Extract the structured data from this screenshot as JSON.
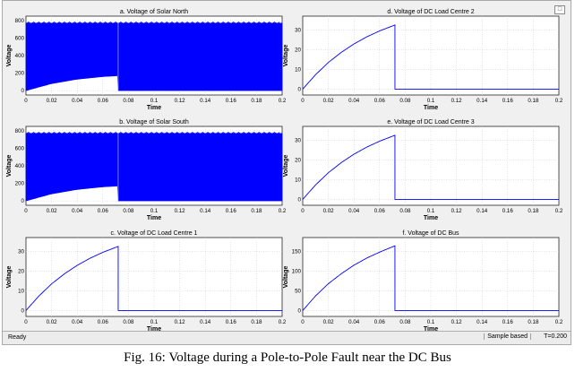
{
  "status": {
    "left": "Ready",
    "mode": "Sample based",
    "time": "T=0.200"
  },
  "caption": "Fig. 16: Voltage during a Pole-to-Pole Fault near the DC Bus",
  "colors": {
    "trace": "#0000ff",
    "background": "#f0f0f0",
    "axes": "#ffffff"
  },
  "chart_data": [
    {
      "type": "line",
      "title": "a. Voltage of Solar North",
      "xlabel": "Time",
      "ylabel": "Voltage",
      "xlim": [
        0,
        0.2
      ],
      "ylim": [
        -50,
        850
      ],
      "xticks": [
        "0",
        "0.02",
        "0.04",
        "0.06",
        "0.08",
        "0.1",
        "0.12",
        "0.14",
        "0.16",
        "0.18",
        "0.2"
      ],
      "yticks": [
        "0",
        "200",
        "400",
        "600",
        "800"
      ],
      "series": [
        {
          "kind": "switching",
          "upper": 770,
          "lower_env": [
            [
              0,
              0
            ],
            [
              0.02,
              80
            ],
            [
              0.04,
              130
            ],
            [
              0.06,
              160
            ],
            [
              0.072,
              170
            ],
            [
              0.073,
              0
            ],
            [
              0.2,
              0
            ]
          ]
        }
      ]
    },
    {
      "type": "line",
      "title": "d. Voltage of DC Load Centre 2",
      "xlabel": "Time",
      "ylabel": "Voltage",
      "xlim": [
        0,
        0.2
      ],
      "ylim": [
        -3,
        37
      ],
      "xticks": [
        "0",
        "0.02",
        "0.04",
        "0.06",
        "0.08",
        "0.1",
        "0.12",
        "0.14",
        "0.16",
        "0.18",
        "0.2"
      ],
      "yticks": [
        "0",
        "10",
        "20",
        "30"
      ],
      "series": [
        {
          "points": [
            [
              0,
              0
            ],
            [
              0.01,
              7.3
            ],
            [
              0.02,
              13.5
            ],
            [
              0.03,
              18.6
            ],
            [
              0.04,
              22.9
            ],
            [
              0.05,
              26.5
            ],
            [
              0.06,
              29.5
            ],
            [
              0.072,
              32.5
            ],
            [
              0.073,
              0
            ],
            [
              0.2,
              0
            ]
          ]
        }
      ]
    },
    {
      "type": "line",
      "title": "b. Voltage of Solar South",
      "xlabel": "Time",
      "ylabel": "Voltage",
      "xlim": [
        0,
        0.2
      ],
      "ylim": [
        -50,
        850
      ],
      "xticks": [
        "0",
        "0.02",
        "0.04",
        "0.06",
        "0.08",
        "0.1",
        "0.12",
        "0.14",
        "0.16",
        "0.18",
        "0.2"
      ],
      "yticks": [
        "0",
        "200",
        "400",
        "600",
        "800"
      ],
      "series": [
        {
          "kind": "switching",
          "upper": 770,
          "lower_env": [
            [
              0,
              0
            ],
            [
              0.02,
              80
            ],
            [
              0.04,
              130
            ],
            [
              0.06,
              160
            ],
            [
              0.072,
              170
            ],
            [
              0.073,
              0
            ],
            [
              0.2,
              0
            ]
          ]
        }
      ]
    },
    {
      "type": "line",
      "title": "e. Voltage of DC Load Centre 3",
      "xlabel": "Time",
      "ylabel": "Voltage",
      "xlim": [
        0,
        0.2
      ],
      "ylim": [
        -3,
        37
      ],
      "xticks": [
        "0",
        "0.02",
        "0.04",
        "0.06",
        "0.08",
        "0.1",
        "0.12",
        "0.14",
        "0.16",
        "0.18",
        "0.2"
      ],
      "yticks": [
        "0",
        "10",
        "20",
        "30"
      ],
      "series": [
        {
          "points": [
            [
              0,
              0
            ],
            [
              0.01,
              7.3
            ],
            [
              0.02,
              13.5
            ],
            [
              0.03,
              18.6
            ],
            [
              0.04,
              22.9
            ],
            [
              0.05,
              26.5
            ],
            [
              0.06,
              29.5
            ],
            [
              0.072,
              32.5
            ],
            [
              0.073,
              0
            ],
            [
              0.2,
              0
            ]
          ]
        }
      ]
    },
    {
      "type": "line",
      "title": "c. Voltage of DC Load Centre 1",
      "xlabel": "Time",
      "ylabel": "Voltage",
      "xlim": [
        0,
        0.2
      ],
      "ylim": [
        -3,
        37
      ],
      "xticks": [
        "0",
        "0.02",
        "0.04",
        "0.06",
        "0.08",
        "0.1",
        "0.12",
        "0.14",
        "0.16",
        "0.18",
        "0.2"
      ],
      "yticks": [
        "0",
        "10",
        "20",
        "30"
      ],
      "series": [
        {
          "points": [
            [
              0,
              0
            ],
            [
              0.01,
              7.3
            ],
            [
              0.02,
              13.5
            ],
            [
              0.03,
              18.6
            ],
            [
              0.04,
              22.9
            ],
            [
              0.05,
              26.5
            ],
            [
              0.06,
              29.5
            ],
            [
              0.072,
              32.5
            ],
            [
              0.073,
              0
            ],
            [
              0.2,
              0
            ]
          ]
        }
      ]
    },
    {
      "type": "line",
      "title": "f. Voltage of DC Bus",
      "xlabel": "Time",
      "ylabel": "Voltage",
      "xlim": [
        0,
        0.2
      ],
      "ylim": [
        -15,
        185
      ],
      "xticks": [
        "0",
        "0.02",
        "0.04",
        "0.06",
        "0.08",
        "0.1",
        "0.12",
        "0.14",
        "0.16",
        "0.18",
        "0.2"
      ],
      "yticks": [
        "0",
        "50",
        "100",
        "150"
      ],
      "series": [
        {
          "points": [
            [
              0,
              0
            ],
            [
              0.01,
              37
            ],
            [
              0.02,
              68
            ],
            [
              0.03,
              93
            ],
            [
              0.04,
              115
            ],
            [
              0.05,
              133
            ],
            [
              0.06,
              148
            ],
            [
              0.072,
              164
            ],
            [
              0.073,
              0
            ],
            [
              0.2,
              0
            ]
          ]
        }
      ]
    }
  ]
}
